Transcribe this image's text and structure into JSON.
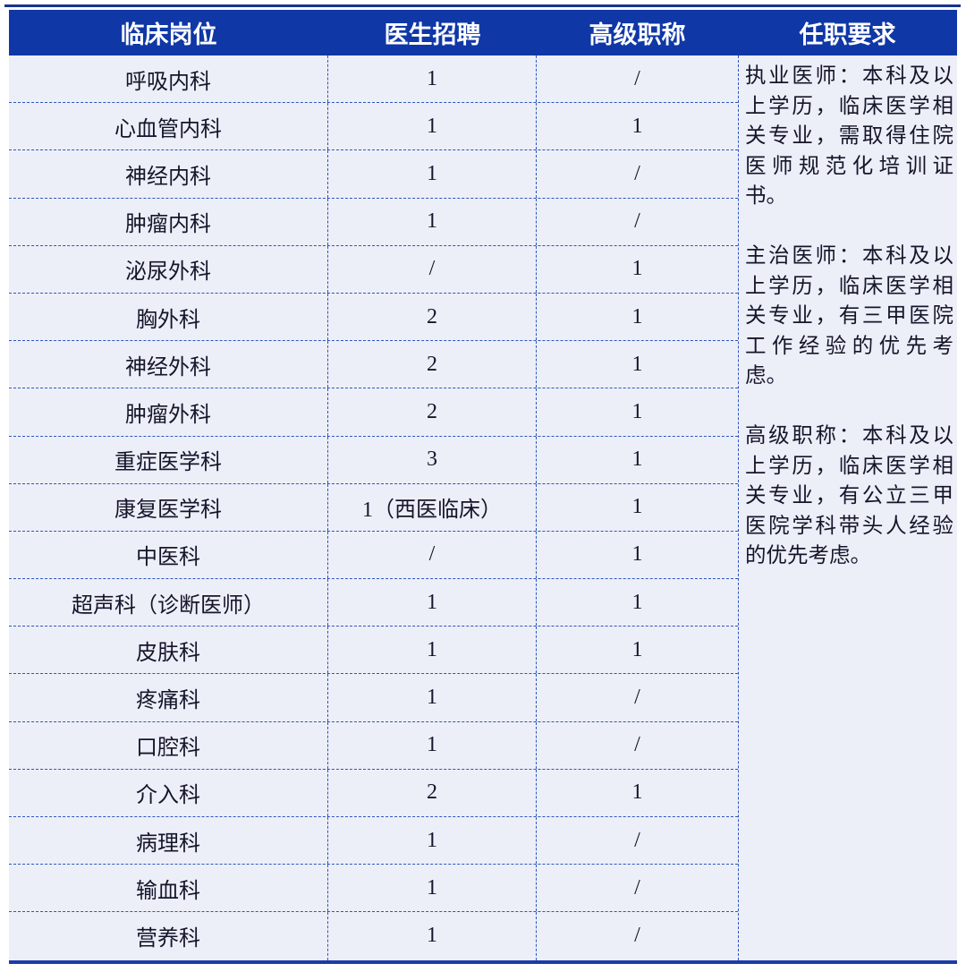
{
  "colors": {
    "header_bg": "#0f37a6",
    "header_text": "#ffffff",
    "row_bg": "#edeff8",
    "dashed_border": "#2c55bd",
    "top_line": "#16338f",
    "bottom_line": "#1c3ba8",
    "cell_text": "#15152b"
  },
  "table": {
    "headers": [
      {
        "label": "临床岗位"
      },
      {
        "label": "医生招聘"
      },
      {
        "label": "高级职称"
      },
      {
        "label": "任职要求"
      }
    ],
    "rows": [
      {
        "position": "呼吸内科",
        "doctor_recruit": "1",
        "senior_title": "/"
      },
      {
        "position": "心血管内科",
        "doctor_recruit": "1",
        "senior_title": "1"
      },
      {
        "position": "神经内科",
        "doctor_recruit": "1",
        "senior_title": "/"
      },
      {
        "position": "肿瘤内科",
        "doctor_recruit": "1",
        "senior_title": "/"
      },
      {
        "position": "泌尿外科",
        "doctor_recruit": "/",
        "senior_title": "1"
      },
      {
        "position": "胸外科",
        "doctor_recruit": "2",
        "senior_title": "1"
      },
      {
        "position": "神经外科",
        "doctor_recruit": "2",
        "senior_title": "1"
      },
      {
        "position": "肿瘤外科",
        "doctor_recruit": "2",
        "senior_title": "1"
      },
      {
        "position": "重症医学科",
        "doctor_recruit": "3",
        "senior_title": "1"
      },
      {
        "position": "康复医学科",
        "doctor_recruit": "1（西医临床）",
        "senior_title": "1"
      },
      {
        "position": "中医科",
        "doctor_recruit": "/",
        "senior_title": "1"
      },
      {
        "position": "超声科（诊断医师）",
        "doctor_recruit": "1",
        "senior_title": "1"
      },
      {
        "position": "皮肤科",
        "doctor_recruit": "1",
        "senior_title": "1"
      },
      {
        "position": "疼痛科",
        "doctor_recruit": "1",
        "senior_title": "/"
      },
      {
        "position": "口腔科",
        "doctor_recruit": "1",
        "senior_title": "/"
      },
      {
        "position": "介入科",
        "doctor_recruit": "2",
        "senior_title": "1"
      },
      {
        "position": "病理科",
        "doctor_recruit": "1",
        "senior_title": "/"
      },
      {
        "position": "输血科",
        "doctor_recruit": "1",
        "senior_title": "/"
      },
      {
        "position": "营养科",
        "doctor_recruit": "1",
        "senior_title": "/"
      }
    ],
    "requirements": [
      "执业医师：本科及以上学历，临床医学相关专业，需取得住院医师规范化培训证书。",
      "主治医师：本科及以上学历，临床医学相关专业，有三甲医院工作经验的优先考虑。",
      "高级职称：本科及以上学历，临床医学相关专业，有公立三甲医院学科带头人经验的优先考虑。"
    ]
  }
}
